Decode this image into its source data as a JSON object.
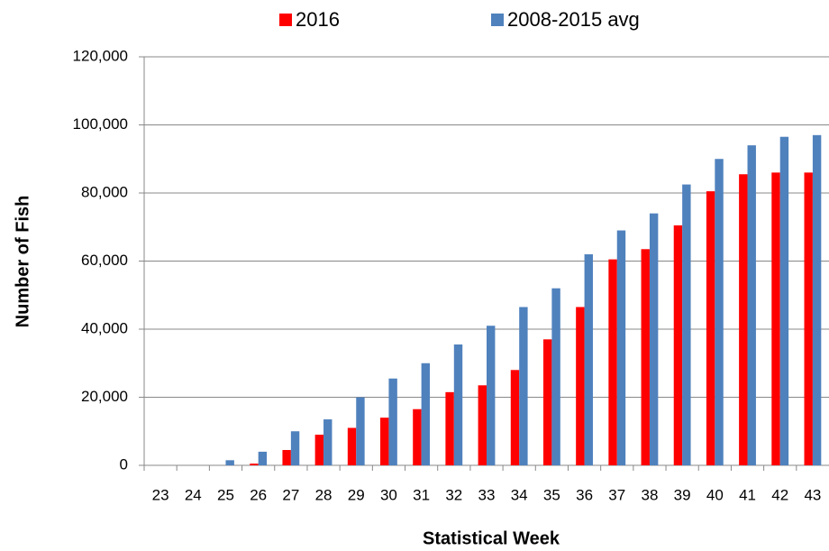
{
  "chart_data": {
    "type": "bar",
    "x_label": "Statistical Week",
    "y_label": "Number of Fish",
    "categories": [
      "23",
      "24",
      "25",
      "26",
      "27",
      "28",
      "29",
      "30",
      "31",
      "32",
      "33",
      "34",
      "35",
      "36",
      "37",
      "38",
      "39",
      "40",
      "41",
      "42",
      "43"
    ],
    "series": [
      {
        "name": "2016",
        "color": "#ff0000",
        "values": [
          0,
          0,
          0,
          500,
          4500,
          9000,
          11000,
          14000,
          16500,
          21500,
          23500,
          28000,
          37000,
          46500,
          60500,
          63500,
          70500,
          80500,
          85500,
          86000,
          86000
        ]
      },
      {
        "name": "2008-2015 avg",
        "color": "#4f81bd",
        "values": [
          0,
          0,
          1500,
          4000,
          10000,
          13500,
          20000,
          25500,
          30000,
          35500,
          41000,
          46500,
          52000,
          62000,
          69000,
          74000,
          82500,
          90000,
          94000,
          96500,
          97000
        ]
      }
    ],
    "ylim": [
      0,
      120000
    ],
    "yticks": [
      0,
      {
        "value": 20000,
        "label": "20,000"
      },
      {
        "value": 40000,
        "label": "40,000"
      },
      {
        "value": 60000,
        "label": "60,000"
      },
      {
        "value": 80000,
        "label": "80,000"
      },
      {
        "value": 100000,
        "label": "100,000"
      },
      {
        "value": 120000,
        "label": "120,000"
      }
    ],
    "grid": true
  }
}
